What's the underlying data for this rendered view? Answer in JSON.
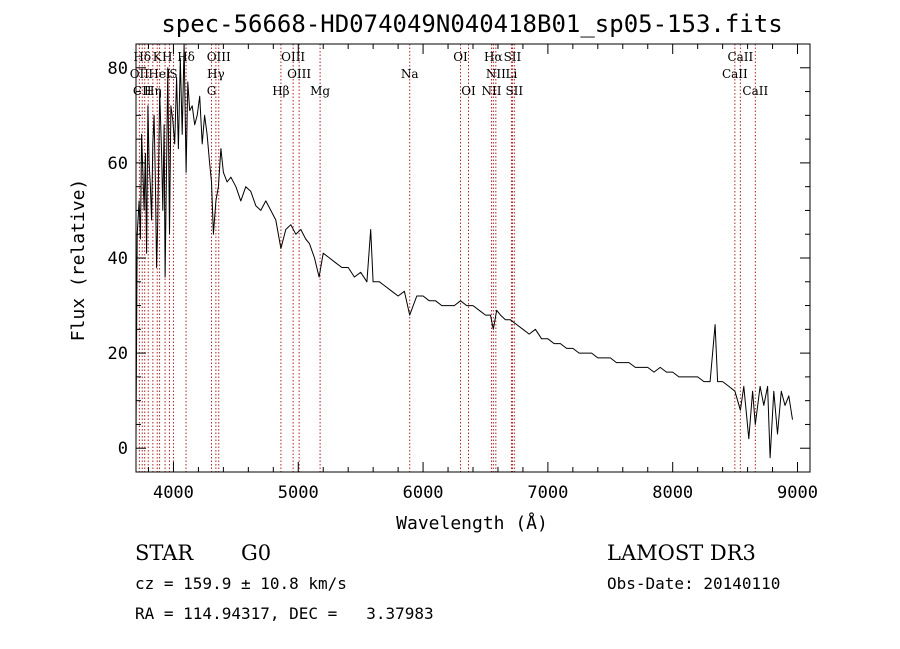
{
  "chart_data": {
    "type": "line",
    "title": "spec-56668-HD074049N040418B01_sp05-153.fits",
    "xlabel": "Wavelength (Å)",
    "ylabel": "Flux (relative)",
    "xlim": [
      3700,
      9100
    ],
    "ylim": [
      -5,
      85
    ],
    "xticks": [
      4000,
      5000,
      6000,
      7000,
      8000,
      9000
    ],
    "yticks": [
      0,
      20,
      40,
      60,
      80
    ],
    "series": [
      {
        "name": "spectrum",
        "x": [
          3700,
          3710,
          3725,
          3735,
          3745,
          3755,
          3765,
          3775,
          3785,
          3795,
          3805,
          3815,
          3825,
          3835,
          3845,
          3855,
          3865,
          3875,
          3890,
          3905,
          3915,
          3925,
          3933,
          3945,
          3955,
          3968,
          3980,
          3995,
          4010,
          4025,
          4040,
          4055,
          4070,
          4085,
          4101,
          4115,
          4130,
          4150,
          4170,
          4190,
          4210,
          4230,
          4250,
          4270,
          4290,
          4305,
          4320,
          4340,
          4360,
          4380,
          4400,
          4430,
          4460,
          4500,
          4540,
          4580,
          4620,
          4660,
          4700,
          4740,
          4780,
          4820,
          4861,
          4900,
          4940,
          4980,
          5020,
          5060,
          5090,
          5130,
          5167,
          5200,
          5250,
          5300,
          5350,
          5400,
          5450,
          5500,
          5550,
          5580,
          5600,
          5650,
          5700,
          5750,
          5800,
          5850,
          5893,
          5950,
          6000,
          6050,
          6100,
          6150,
          6200,
          6250,
          6300,
          6350,
          6400,
          6450,
          6500,
          6540,
          6563,
          6590,
          6620,
          6660,
          6700,
          6750,
          6800,
          6850,
          6900,
          6950,
          7000,
          7050,
          7100,
          7150,
          7200,
          7250,
          7300,
          7350,
          7400,
          7450,
          7500,
          7550,
          7600,
          7650,
          7700,
          7750,
          7800,
          7850,
          7900,
          7950,
          8000,
          8050,
          8100,
          8150,
          8200,
          8250,
          8300,
          8340,
          8360,
          8400,
          8450,
          8498,
          8542,
          8570,
          8610,
          8640,
          8662,
          8700,
          8730,
          8760,
          8780,
          8810,
          8840,
          8870,
          8900,
          8930,
          8960
        ],
        "values": [
          2,
          45,
          52,
          44,
          66,
          58,
          50,
          62,
          41,
          72,
          60,
          55,
          48,
          64,
          70,
          57,
          38,
          48,
          75,
          62,
          50,
          68,
          36,
          60,
          80,
          45,
          72,
          69,
          64,
          78,
          63,
          82,
          66,
          85,
          58,
          77,
          71,
          72,
          68,
          70,
          74,
          64,
          70,
          66,
          60,
          56,
          45,
          52,
          55,
          63,
          58,
          56,
          57,
          55,
          52,
          55,
          54,
          51,
          50,
          52,
          50,
          48,
          42,
          46,
          47,
          45,
          46,
          44,
          43,
          40,
          36,
          41,
          40,
          39,
          38,
          38,
          36,
          37,
          35,
          46,
          35,
          35,
          34,
          33,
          32,
          33,
          28,
          32,
          32,
          31,
          31,
          30,
          30,
          30,
          31,
          30,
          30,
          29,
          28,
          28,
          25,
          29,
          28,
          27,
          27,
          26,
          25,
          24,
          25,
          23,
          23,
          22,
          22,
          21,
          21,
          20,
          20,
          20,
          19,
          19,
          19,
          18,
          18,
          18,
          17,
          17,
          17,
          16,
          17,
          16,
          16,
          15,
          15,
          15,
          15,
          14,
          14,
          26,
          14,
          14,
          13,
          12,
          8,
          13,
          2,
          12,
          5,
          13,
          9,
          13,
          -2,
          12,
          3,
          12,
          9,
          11,
          6
        ]
      }
    ],
    "line_markers": [
      {
        "label": "Hδ",
        "x": 3750,
        "row": 1
      },
      {
        "label": "K",
        "x": 3870,
        "row": 1
      },
      {
        "label": "H",
        "x": 3950,
        "row": 1
      },
      {
        "label": "Hδ",
        "x": 4101,
        "row": 1
      },
      {
        "label": "OIII",
        "x": 4363,
        "row": 1
      },
      {
        "label": "OIII",
        "x": 4959,
        "row": 1
      },
      {
        "label": "OI",
        "x": 6300,
        "row": 1
      },
      {
        "label": "Hα",
        "x": 6563,
        "row": 1
      },
      {
        "label": "SII",
        "x": 6716,
        "row": 1
      },
      {
        "label": "CaII",
        "x": 8542,
        "row": 1
      },
      {
        "label": "OII",
        "x": 3727,
        "row": 2
      },
      {
        "label": "HeI",
        "x": 3889,
        "row": 2
      },
      {
        "label": "S",
        "x": 4000,
        "row": 2
      },
      {
        "label": "Hγ",
        "x": 4340,
        "row": 2
      },
      {
        "label": "OIII",
        "x": 5007,
        "row": 2
      },
      {
        "label": "Na",
        "x": 5893,
        "row": 2
      },
      {
        "label": "NII",
        "x": 6583,
        "row": 2
      },
      {
        "label": "Li",
        "x": 6708,
        "row": 2
      },
      {
        "label": "CaII",
        "x": 8498,
        "row": 2
      },
      {
        "label": "CII",
        "x": 3750,
        "row": 3
      },
      {
        "label": "Hη",
        "x": 3835,
        "row": 3
      },
      {
        "label": "G",
        "x": 4305,
        "row": 3
      },
      {
        "label": "Hβ",
        "x": 4861,
        "row": 3
      },
      {
        "label": "Mg",
        "x": 5175,
        "row": 3
      },
      {
        "label": "OI",
        "x": 6364,
        "row": 3
      },
      {
        "label": "NII",
        "x": 6548,
        "row": 3
      },
      {
        "label": "SII",
        "x": 6731,
        "row": 3
      },
      {
        "label": "CaII",
        "x": 8662,
        "row": 3
      }
    ],
    "marker_lines": [
      3727,
      3750,
      3770,
      3798,
      3835,
      3870,
      3889,
      3933,
      3968,
      4000,
      4101,
      4305,
      4340,
      4363,
      4861,
      4959,
      5007,
      5175,
      5893,
      6300,
      6364,
      6548,
      6563,
      6583,
      6708,
      6716,
      6731,
      8498,
      8542,
      8662
    ],
    "colors": {
      "spectrum": "#000000",
      "marker": "#b22222",
      "axes": "#000000"
    }
  },
  "info": {
    "object_class": "STAR",
    "subclass": "G0",
    "survey": "LAMOST DR3",
    "redshift": "cz = 159.9 ± 10.8 km/s",
    "obs_date": "Obs-Date: 20140110",
    "coords": "RA = 114.94317, DEC =   3.37983"
  }
}
